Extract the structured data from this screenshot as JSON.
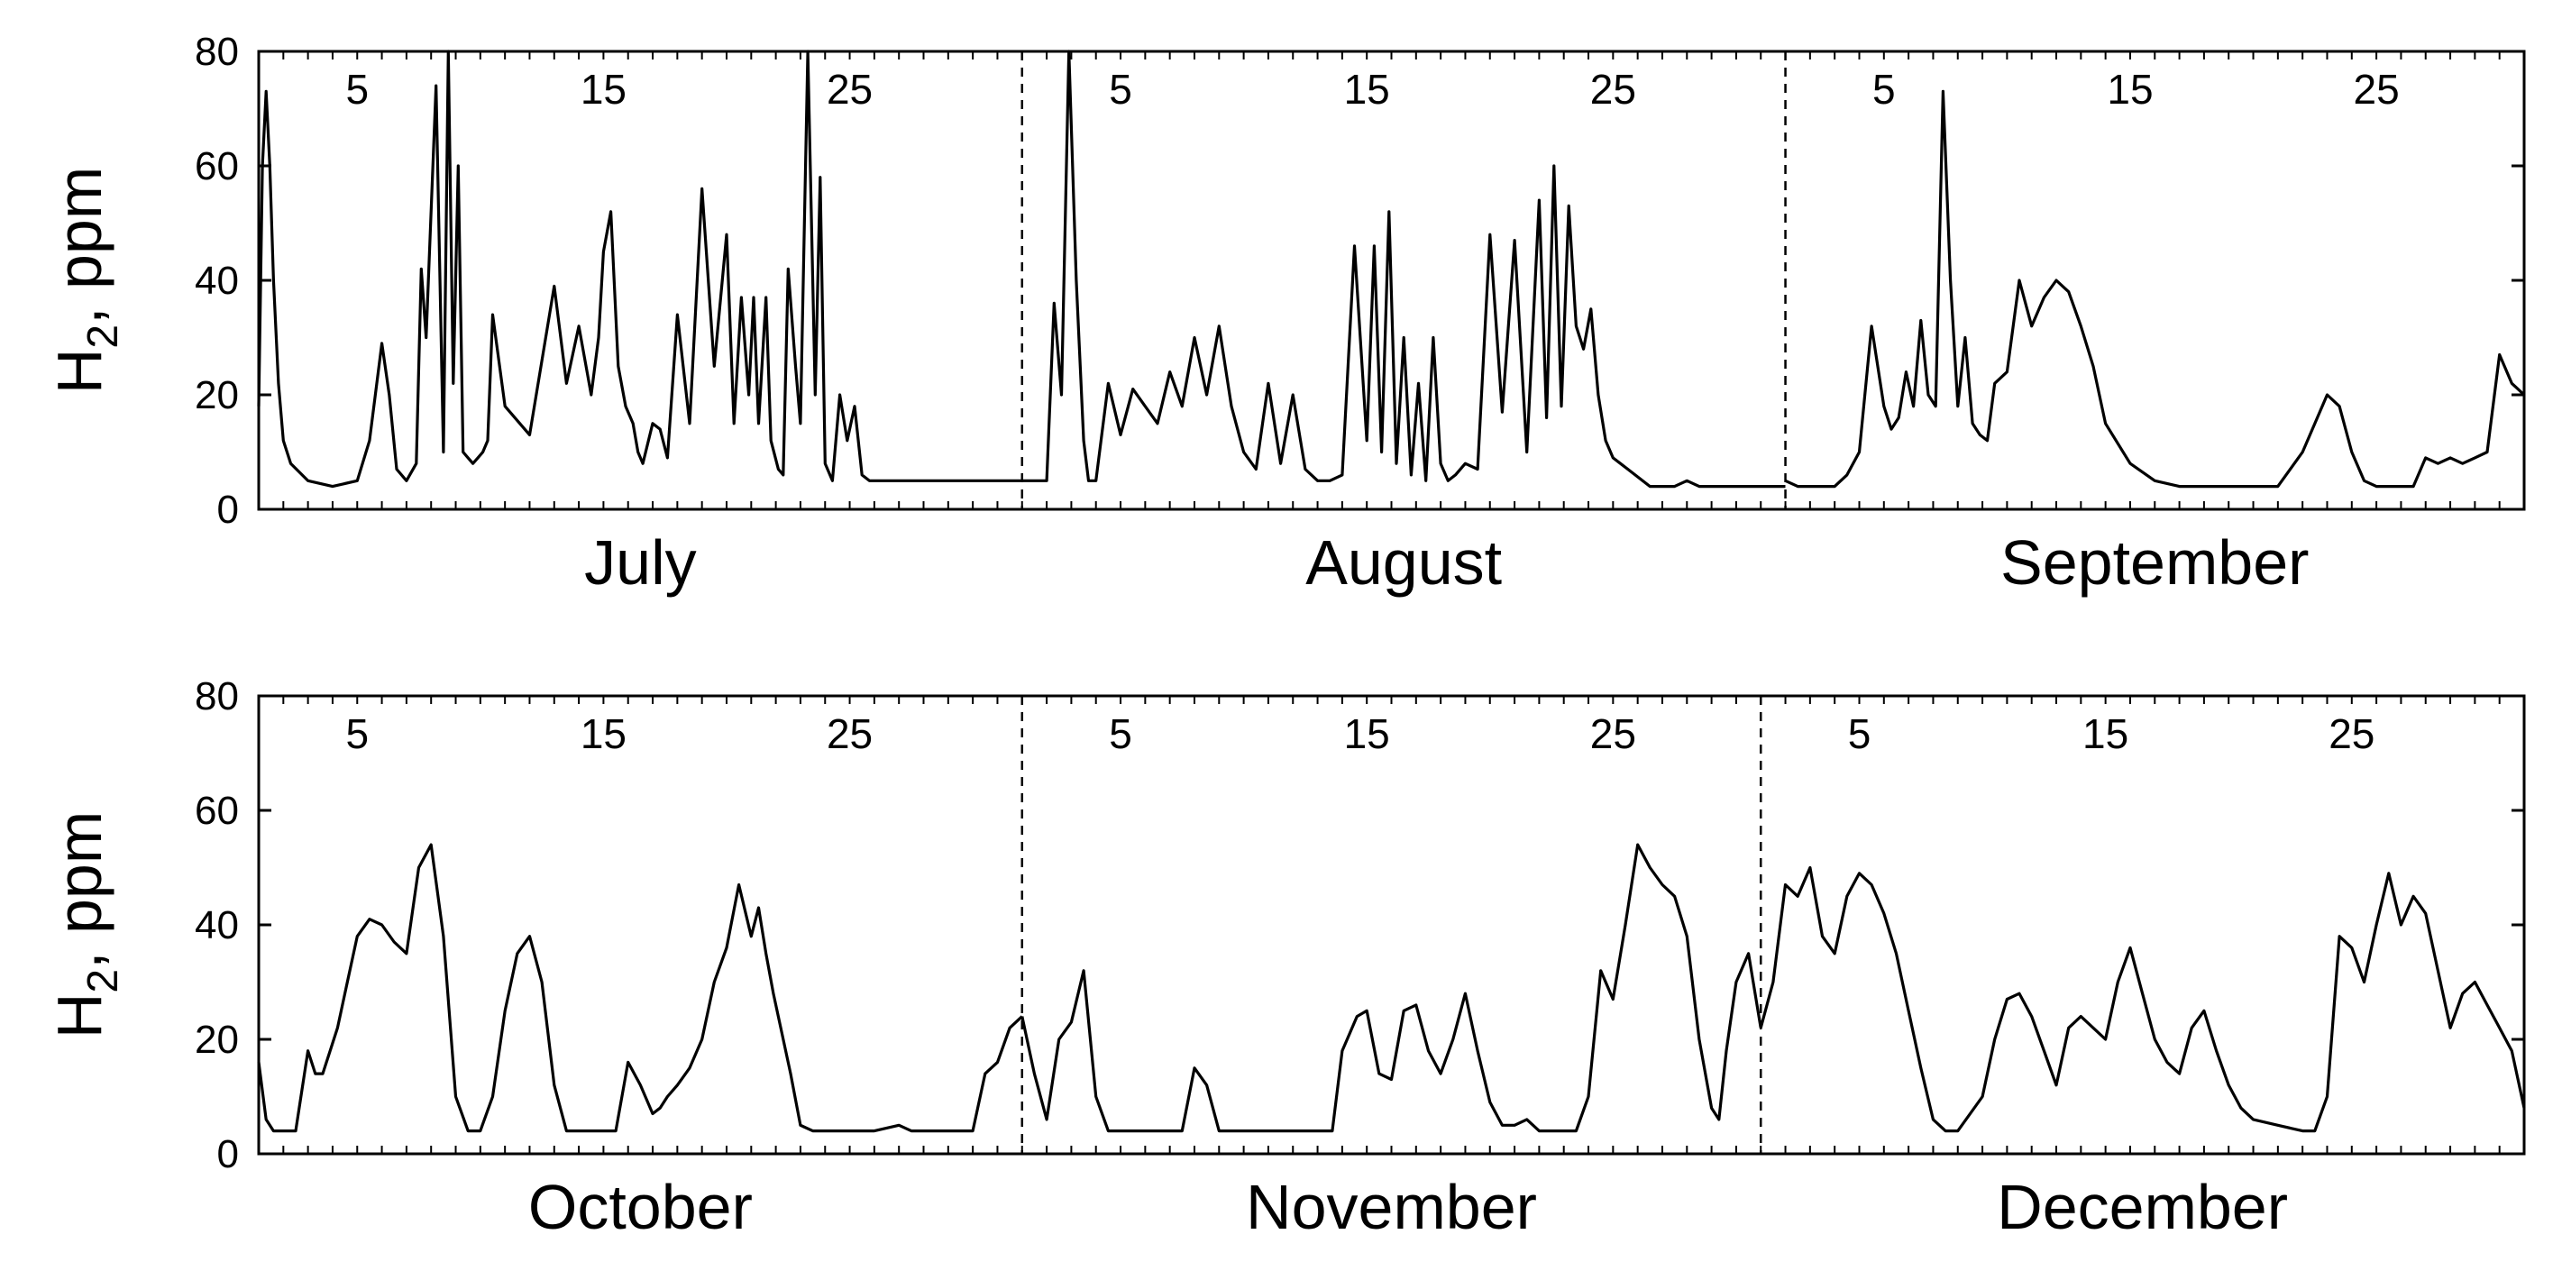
{
  "chart_data": [
    {
      "type": "line",
      "title": "",
      "ylabel_main": "H",
      "ylabel_sub": "2",
      "ylabel_rest": ", ppm",
      "ylim": [
        0,
        80
      ],
      "yticks": [
        "0",
        "20",
        "40",
        "60",
        "80"
      ],
      "months": [
        {
          "name": "July",
          "days": 31
        },
        {
          "name": "August",
          "days": 31
        },
        {
          "name": "September",
          "days": 30
        }
      ],
      "day_ticks": [
        "5",
        "15",
        "25"
      ],
      "series": [
        {
          "color": "#000000",
          "x": [
            1,
            1.15,
            1.3,
            1.45,
            1.6,
            1.8,
            2.0,
            2.3,
            3,
            4,
            5,
            5.5,
            6,
            6.3,
            6.6,
            7,
            7.4,
            7.6,
            7.8,
            8.2,
            8.5,
            8.7,
            8.9,
            9.1,
            9.3,
            9.5,
            9.7,
            9.9,
            10.1,
            10.3,
            10.5,
            11,
            12,
            13,
            13.5,
            14,
            14.5,
            14.8,
            15,
            15.3,
            15.6,
            15.9,
            16.2,
            16.4,
            16.6,
            17,
            17.3,
            17.6,
            18,
            18.5,
            19,
            19.5,
            20,
            20.3,
            20.6,
            20.9,
            21.1,
            21.3,
            21.6,
            21.8,
            22.1,
            22.3,
            22.5,
            22.8,
            23,
            23.3,
            23.6,
            23.8,
            24,
            24.3,
            24.6,
            24.9,
            25.2,
            25.5,
            25.8,
            26.1,
            26.4,
            26.7,
            27,
            27.3,
            27.6,
            27.8,
            28,
            28.2,
            28.4,
            28.6,
            28.8,
            29,
            29.2,
            29.5,
            29.8,
            30,
            30.5,
            31,
            31.5,
            32
          ],
          "y": [
            18,
            60,
            73,
            60,
            40,
            22,
            12,
            8,
            5,
            4,
            5,
            12,
            29,
            20,
            7,
            5,
            8,
            42,
            30,
            74,
            10,
            80,
            22,
            60,
            10,
            9,
            8,
            9,
            10,
            12,
            34,
            18,
            13,
            39,
            22,
            32,
            20,
            30,
            45,
            52,
            25,
            18,
            15,
            10,
            8,
            15,
            14,
            9,
            34,
            15,
            56,
            25,
            48,
            15,
            37,
            20,
            37,
            15,
            37,
            12,
            7,
            6,
            42,
            25,
            15,
            80,
            20,
            58,
            8,
            5,
            20,
            12,
            18,
            6,
            5,
            5,
            5,
            5,
            5,
            5,
            5,
            5,
            5,
            5,
            5,
            5,
            5,
            5,
            5,
            5,
            5,
            5,
            5,
            5,
            5,
            5
          ]
        },
        {
          "color": "#000000",
          "x": [
            32,
            33,
            33.3,
            33.6,
            33.9,
            34.2,
            34.5,
            34.7,
            35,
            35.5,
            36,
            36.5,
            37,
            37.5,
            38,
            38.5,
            39,
            39.5,
            40,
            40.5,
            41,
            41.5,
            42,
            42.5,
            43,
            43.5,
            44,
            44.5,
            45,
            45.5,
            46,
            46.3,
            46.6,
            46.9,
            47.2,
            47.5,
            47.8,
            48.1,
            48.4,
            48.7,
            49,
            49.3,
            49.6,
            50,
            50.5,
            51,
            51.5,
            52,
            52.5,
            53,
            53.3,
            53.6,
            53.9,
            54.2,
            54.5,
            54.8,
            55.1,
            55.4,
            55.7,
            56,
            56.3,
            56.6,
            56.9,
            57.2,
            57.5,
            58,
            58.5,
            59,
            59.5,
            60,
            60.5,
            61,
            61.5,
            62,
            62.5,
            63
          ],
          "y": [
            5,
            5,
            36,
            20,
            80,
            40,
            12,
            5,
            5,
            22,
            13,
            21,
            18,
            15,
            24,
            18,
            30,
            20,
            32,
            18,
            10,
            7,
            22,
            8,
            20,
            7,
            5,
            5,
            6,
            46,
            12,
            46,
            10,
            52,
            8,
            30,
            6,
            22,
            5,
            30,
            8,
            5,
            6,
            8,
            7,
            48,
            17,
            47,
            10,
            54,
            16,
            60,
            18,
            53,
            32,
            28,
            35,
            20,
            12,
            9,
            8,
            7,
            6,
            5,
            4,
            4,
            4,
            5,
            4,
            4,
            4,
            4,
            4,
            4,
            4,
            4
          ]
        },
        {
          "color": "#000000",
          "x": [
            63,
            63.5,
            64,
            64.5,
            65,
            65.5,
            66,
            66.5,
            67,
            67.3,
            67.6,
            67.9,
            68.2,
            68.5,
            68.8,
            69.1,
            69.4,
            69.7,
            70,
            70.3,
            70.6,
            70.9,
            71.2,
            71.5,
            72,
            72.5,
            73,
            73.5,
            74,
            74.5,
            75,
            75.5,
            76,
            77,
            78,
            79,
            80,
            81,
            82,
            83,
            84,
            85,
            85.5,
            86,
            86.5,
            87,
            87.5,
            88,
            88.5,
            89,
            89.5,
            90,
            90.5,
            91,
            91.5,
            92,
            92.5,
            93
          ],
          "y": [
            5,
            4,
            4,
            4,
            4,
            6,
            10,
            32,
            18,
            14,
            16,
            24,
            18,
            33,
            20,
            18,
            73,
            40,
            18,
            30,
            15,
            13,
            12,
            22,
            24,
            40,
            32,
            37,
            40,
            38,
            32,
            25,
            15,
            8,
            5,
            4,
            4,
            4,
            4,
            4,
            10,
            20,
            18,
            10,
            5,
            4,
            4,
            4,
            4,
            9,
            8,
            9,
            8,
            9,
            10,
            27,
            22,
            20
          ]
        }
      ]
    },
    {
      "type": "line",
      "title": "",
      "ylabel_main": "H",
      "ylabel_sub": "2",
      "ylabel_rest": ", ppm",
      "ylim": [
        0,
        80
      ],
      "yticks": [
        "0",
        "20",
        "40",
        "60",
        "80"
      ],
      "months": [
        {
          "name": "October",
          "days": 31
        },
        {
          "name": "November",
          "days": 30
        },
        {
          "name": "December",
          "days": 31
        }
      ],
      "day_ticks": [
        "5",
        "15",
        "25"
      ],
      "series": [
        {
          "color": "#000000",
          "x": [
            1,
            1.3,
            1.6,
            2,
            2.5,
            3,
            3.3,
            3.6,
            3.9,
            4.2,
            4.6,
            5,
            5.5,
            6,
            6.5,
            7,
            7.5,
            8,
            8.5,
            9,
            9.5,
            10,
            10.5,
            11,
            11.5,
            12,
            12.5,
            13,
            13.5,
            14,
            14.5,
            15,
            15.5,
            16,
            16.5,
            17,
            17.3,
            17.6,
            18,
            18.5,
            19,
            19.5,
            20,
            20.5,
            21,
            21.3,
            21.6,
            21.9,
            22.2,
            22.6,
            23,
            23.5,
            24,
            24.5,
            25,
            26,
            27,
            27.5,
            28,
            29,
            30,
            30.5,
            31,
            31.5,
            32
          ],
          "y": [
            16,
            6,
            4,
            4,
            4,
            18,
            14,
            14,
            18,
            22,
            30,
            38,
            41,
            40,
            37,
            35,
            50,
            54,
            38,
            10,
            4,
            4,
            10,
            25,
            35,
            38,
            30,
            12,
            4,
            4,
            4,
            4,
            4,
            16,
            12,
            7,
            8,
            10,
            12,
            15,
            20,
            30,
            36,
            47,
            38,
            43,
            35,
            28,
            22,
            14,
            5,
            4,
            4,
            4,
            4,
            4,
            5,
            4,
            4,
            4,
            4,
            14,
            16,
            22,
            24
          ]
        },
        {
          "color": "#000000",
          "x": [
            32,
            32.5,
            33,
            33.5,
            34,
            34.5,
            35,
            35.5,
            36,
            37,
            38,
            38.5,
            39,
            39.5,
            40,
            41,
            42,
            43,
            44,
            44.3,
            44.6,
            45,
            45.3,
            45.6,
            46,
            46.5,
            47,
            47.5,
            48,
            48.5,
            49,
            49.5,
            50,
            50.5,
            51,
            51.5,
            52,
            52.5,
            53,
            53.5,
            54,
            54.5,
            55,
            55.5,
            56,
            56.5,
            57,
            57.5,
            58,
            58.5,
            59,
            59.5,
            60,
            60.3,
            60.6,
            61,
            61.5,
            62
          ],
          "y": [
            24,
            14,
            6,
            20,
            23,
            32,
            10,
            4,
            4,
            4,
            4,
            4,
            15,
            12,
            4,
            4,
            4,
            4,
            4,
            4,
            4,
            18,
            21,
            24,
            25,
            14,
            13,
            25,
            26,
            18,
            14,
            20,
            28,
            18,
            9,
            5,
            5,
            6,
            4,
            4,
            4,
            4,
            10,
            32,
            27,
            40,
            54,
            50,
            47,
            45,
            38,
            20,
            8,
            6,
            18,
            30,
            35,
            22
          ]
        },
        {
          "color": "#000000",
          "x": [
            62,
            62.5,
            63,
            63.5,
            64,
            64.5,
            65,
            65.5,
            66,
            66.5,
            67,
            67.5,
            68,
            68.5,
            69,
            69.5,
            70,
            71,
            71.5,
            72,
            72.5,
            73,
            73.5,
            74,
            74.5,
            75,
            75.5,
            76,
            76.5,
            77,
            77.5,
            78,
            78.5,
            79,
            79.5,
            80,
            80.5,
            81,
            81.5,
            82,
            83,
            84,
            84.5,
            85,
            85.5,
            86,
            86.5,
            87,
            87.5,
            88,
            88.5,
            89,
            89.5,
            90,
            90.5,
            91,
            91.5,
            92,
            92.5,
            93
          ],
          "y": [
            22,
            30,
            47,
            45,
            50,
            38,
            35,
            45,
            49,
            47,
            42,
            35,
            25,
            15,
            6,
            4,
            4,
            10,
            20,
            27,
            28,
            24,
            18,
            12,
            22,
            24,
            22,
            20,
            30,
            36,
            28,
            20,
            16,
            14,
            22,
            25,
            18,
            12,
            8,
            6,
            5,
            4,
            4,
            10,
            38,
            36,
            30,
            40,
            49,
            40,
            45,
            42,
            32,
            22,
            28,
            30,
            26,
            22,
            18,
            8
          ]
        }
      ]
    }
  ]
}
